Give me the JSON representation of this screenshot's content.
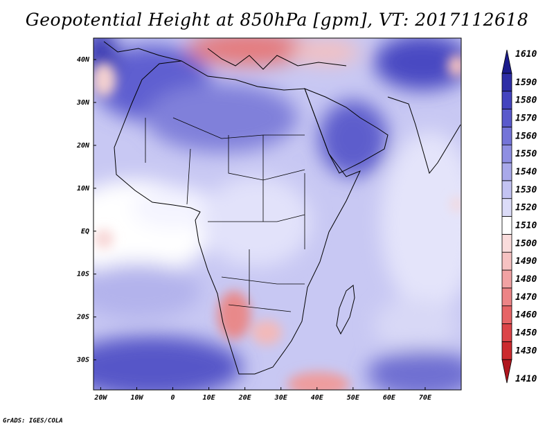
{
  "title": "Geopotential Height at 850hPa [gpm], VT: 2017112618",
  "footer": "GrADS: IGES/COLA",
  "map": {
    "lon_range": [
      -22,
      80
    ],
    "lat_range": [
      -37,
      45
    ],
    "x_ticks": [
      "20W",
      "10W",
      "0",
      "10E",
      "20E",
      "30E",
      "40E",
      "50E",
      "60E",
      "70E"
    ],
    "y_ticks": [
      "40N",
      "30N",
      "20N",
      "10N",
      "EQ",
      "10S",
      "20S",
      "30S"
    ]
  },
  "colorbar": {
    "levels": [
      "1410",
      "1430",
      "1450",
      "1460",
      "1470",
      "1480",
      "1490",
      "1500",
      "1510",
      "1520",
      "1530",
      "1540",
      "1550",
      "1560",
      "1570",
      "1580",
      "1590",
      "1610"
    ],
    "colors": [
      "#b0161f",
      "#cc2a2e",
      "#dc4448",
      "#e66466",
      "#ec8486",
      "#f1a2a3",
      "#f6c2c2",
      "#fadcdc",
      "#ffffff",
      "#dcdcf8",
      "#c3c3f2",
      "#a9a9ea",
      "#8f8fe2",
      "#7474d8",
      "#5a5acc",
      "#4444bf",
      "#2e2ea6",
      "#1c1c8c"
    ]
  }
}
